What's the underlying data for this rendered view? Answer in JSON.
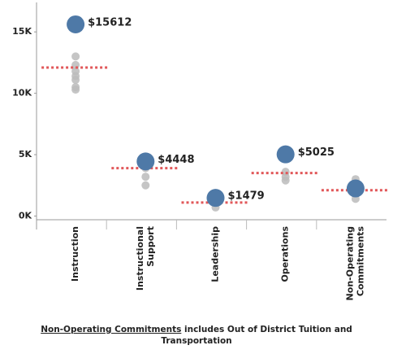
{
  "chart_data": {
    "type": "dot",
    "categories": [
      [
        "Instruction"
      ],
      [
        "Instructional",
        "Support"
      ],
      [
        "Leadership"
      ],
      [
        "Operations"
      ],
      [
        "Non-Operating",
        "Commitments"
      ]
    ],
    "values": [
      15612,
      4448,
      1479,
      5025,
      2250
    ],
    "value_labels": [
      "$15612",
      "$4448",
      "$1479",
      "$5025",
      null
    ],
    "color": "#4e79a7",
    "peer_values": [
      [
        13000,
        12300,
        11800,
        11400,
        11100,
        10500,
        10300
      ],
      [
        3900,
        3200,
        2500
      ],
      [
        1060,
        700
      ],
      [
        3600,
        3200,
        2900
      ],
      [
        3000,
        2500,
        1900,
        1400
      ]
    ],
    "peer_color": "#bbbbbb",
    "averages": [
      12100,
      3900,
      1100,
      3500,
      2100
    ],
    "average_color": "#e15759",
    "ylim": [
      -300,
      17400
    ],
    "yticks": [
      {
        "value": 0,
        "label": "0K"
      },
      {
        "value": 5000,
        "label": "5K"
      },
      {
        "value": 10000,
        "label": "10K"
      },
      {
        "value": 15000,
        "label": "15K"
      }
    ]
  },
  "note": {
    "underlined": "Non-Operating Commitments",
    "text": " includes Out of District Tuition and Transportation"
  }
}
